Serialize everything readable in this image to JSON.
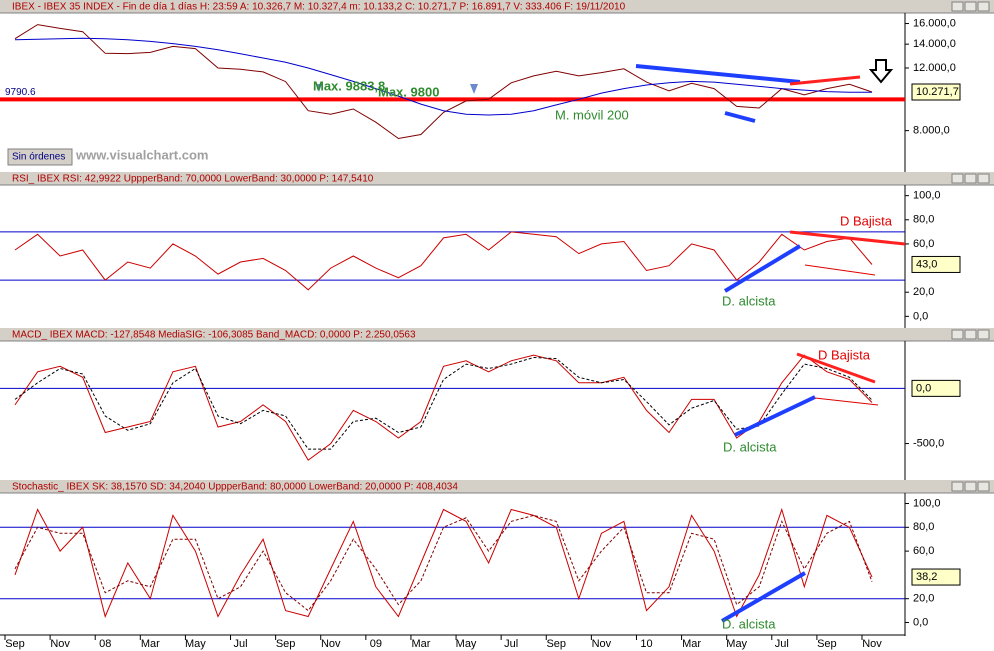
{
  "chart_data": [
    {
      "type": "line",
      "title": "IBEX - IBEX 35 INDEX - Fin de día 1 días H: 23:59 A: 10.326,7 M: 10.327,4 m: 10.133,2 C: 10.271,7 P: 16.891,7 V: 333.406 F: 19/11/2010",
      "log_scale": true,
      "ylim": [
        6200,
        16800
      ],
      "yticks": [
        {
          "value": 16000,
          "label": "16.000,0"
        },
        {
          "value": 14000,
          "label": "14.000,0"
        },
        {
          "value": 12000,
          "label": "12.000,0"
        },
        {
          "value": 8000,
          "label": "8.000,0"
        }
      ],
      "series": [
        {
          "color": "#800000",
          "dashed": false,
          "values": [
            14500,
            15890,
            15500,
            15180,
            13200,
            13170,
            13270,
            13800,
            13600,
            12000,
            11900,
            11700,
            10990,
            9100,
            8900,
            9200,
            8450,
            7600,
            7800,
            9000,
            9700,
            9800,
            10900,
            11400,
            11750,
            11400,
            11650,
            11940,
            10950,
            10350,
            10870,
            10500,
            9360,
            9260,
            10500,
            10090,
            10500,
            10800,
            10271.7
          ]
        },
        {
          "color": "#0000cc",
          "dashed": false,
          "values": [
            14400,
            14450,
            14500,
            14550,
            14500,
            14400,
            14250,
            14050,
            13800,
            13500,
            13150,
            12800,
            12450,
            12000,
            11500,
            11000,
            10500,
            10000,
            9500,
            9100,
            8900,
            8850,
            8900,
            9100,
            9450,
            9800,
            10200,
            10500,
            10750,
            10900,
            11000,
            10950,
            10800,
            10650,
            10500,
            10400,
            10300,
            10250,
            10250
          ]
        }
      ],
      "hline": 9790.6,
      "hline_color": "#ff0000",
      "last_value": {
        "value": 10271.7,
        "label": "10.271,7"
      },
      "annotations": [
        "Max. 9883,8",
        "Max. 9800",
        "M. móvil 200",
        "Sin órdenes",
        "www.visualchart.com"
      ]
    },
    {
      "type": "line",
      "title": "RSI_ IBEX RSI: 42,9922 UppperBand: 70,0000 LowerBand: 30,0000 P: 147,5410",
      "log_scale": false,
      "ylim": [
        -8,
        108
      ],
      "yticks": [
        {
          "value": 100,
          "label": "100,0"
        },
        {
          "value": 80,
          "label": "80,0"
        },
        {
          "value": 60,
          "label": "60,0"
        },
        {
          "value": 20,
          "label": "20,0"
        },
        {
          "value": 0,
          "label": "0,0"
        }
      ],
      "bands": [
        70,
        30
      ],
      "bands_color": "#0000cc",
      "series": [
        {
          "color": "#cc0000",
          "dashed": false,
          "values": [
            55,
            68,
            50,
            55,
            30,
            45,
            40,
            60,
            50,
            35,
            45,
            48,
            38,
            22,
            40,
            50,
            40,
            32,
            42,
            65,
            68,
            55,
            70,
            68,
            66,
            52,
            60,
            62,
            38,
            42,
            60,
            55,
            30,
            45,
            68,
            55,
            62,
            65,
            42.9922
          ]
        }
      ],
      "last_value": {
        "value": 43.0,
        "label": "43,0"
      },
      "annotations": [
        "D Bajista",
        "D. alcista"
      ]
    },
    {
      "type": "line",
      "title": "MACD_ IBEX MACD: -127,8548 MediaSIG: -106,3085 Band_MACD: 0,0000 P: 2.250,0563",
      "log_scale": false,
      "ylim": [
        -812,
        420
      ],
      "yticks": [
        {
          "value": -500,
          "label": "-500,0"
        }
      ],
      "bands": [
        0
      ],
      "bands_color": "#0000cc",
      "series": [
        {
          "color": "#cc0000",
          "dashed": false,
          "values": [
            -150,
            150,
            200,
            100,
            -400,
            -350,
            -300,
            150,
            200,
            -350,
            -300,
            -150,
            -300,
            -650,
            -500,
            -200,
            -300,
            -450,
            -300,
            200,
            250,
            150,
            250,
            300,
            250,
            50,
            50,
            100,
            -200,
            -400,
            -100,
            -100,
            -450,
            -300,
            50,
            300,
            150,
            80,
            -127.8548
          ]
        },
        {
          "color": "#000000",
          "dashed": true,
          "values": [
            -100,
            50,
            180,
            130,
            -250,
            -380,
            -320,
            50,
            180,
            -250,
            -320,
            -200,
            -250,
            -550,
            -550,
            -300,
            -270,
            -400,
            -350,
            80,
            220,
            180,
            220,
            280,
            270,
            100,
            50,
            80,
            -120,
            -330,
            -180,
            -110,
            -370,
            -340,
            -50,
            220,
            180,
            100,
            -106.3085
          ]
        }
      ],
      "last_value": {
        "value": 0,
        "label": "0,0"
      },
      "annotations": [
        "D Bajista",
        "D. alcista"
      ]
    },
    {
      "type": "line",
      "title": "Stochastic_ IBEX SK: 38,1570 SD: 34,2040 UppperBand: 80,0000 LowerBand: 20,0000 P: 408,4034",
      "log_scale": false,
      "ylim": [
        -8,
        108
      ],
      "yticks": [
        {
          "value": 100,
          "label": "100,0"
        },
        {
          "value": 80,
          "label": "80,0"
        },
        {
          "value": 60,
          "label": "60,0"
        },
        {
          "value": 20,
          "label": "20,0"
        },
        {
          "value": 0,
          "label": "0,0"
        }
      ],
      "bands": [
        80,
        20
      ],
      "bands_color": "#0000cc",
      "categories": [
        "Sep",
        null,
        "Nov",
        null,
        "08",
        null,
        "Mar",
        null,
        "May",
        null,
        "Jul",
        null,
        "Sep",
        null,
        "Nov",
        null,
        "09",
        null,
        "Mar",
        null,
        "May",
        null,
        "Jul",
        null,
        "Sep",
        null,
        "Nov",
        null,
        "10",
        null,
        "Mar",
        null,
        "May",
        null,
        "Jul",
        null,
        "Sep",
        null,
        "Nov"
      ],
      "series": [
        {
          "color": "#cc0000",
          "dashed": false,
          "values": [
            40,
            95,
            60,
            80,
            5,
            50,
            20,
            90,
            60,
            5,
            40,
            70,
            10,
            5,
            45,
            85,
            30,
            5,
            50,
            95,
            85,
            50,
            95,
            90,
            80,
            20,
            75,
            85,
            10,
            30,
            90,
            60,
            5,
            40,
            95,
            30,
            90,
            80,
            38.157
          ]
        },
        {
          "color": "#800000",
          "dashed": true,
          "values": [
            45,
            80,
            75,
            75,
            25,
            35,
            30,
            70,
            70,
            20,
            30,
            60,
            25,
            10,
            35,
            70,
            45,
            15,
            35,
            80,
            88,
            60,
            85,
            90,
            85,
            35,
            60,
            80,
            25,
            25,
            75,
            70,
            15,
            30,
            85,
            45,
            75,
            85,
            34.204
          ]
        }
      ],
      "last_value": {
        "value": 38.2,
        "label": "38,2"
      },
      "annotations": [
        "D. alcista"
      ]
    }
  ]
}
